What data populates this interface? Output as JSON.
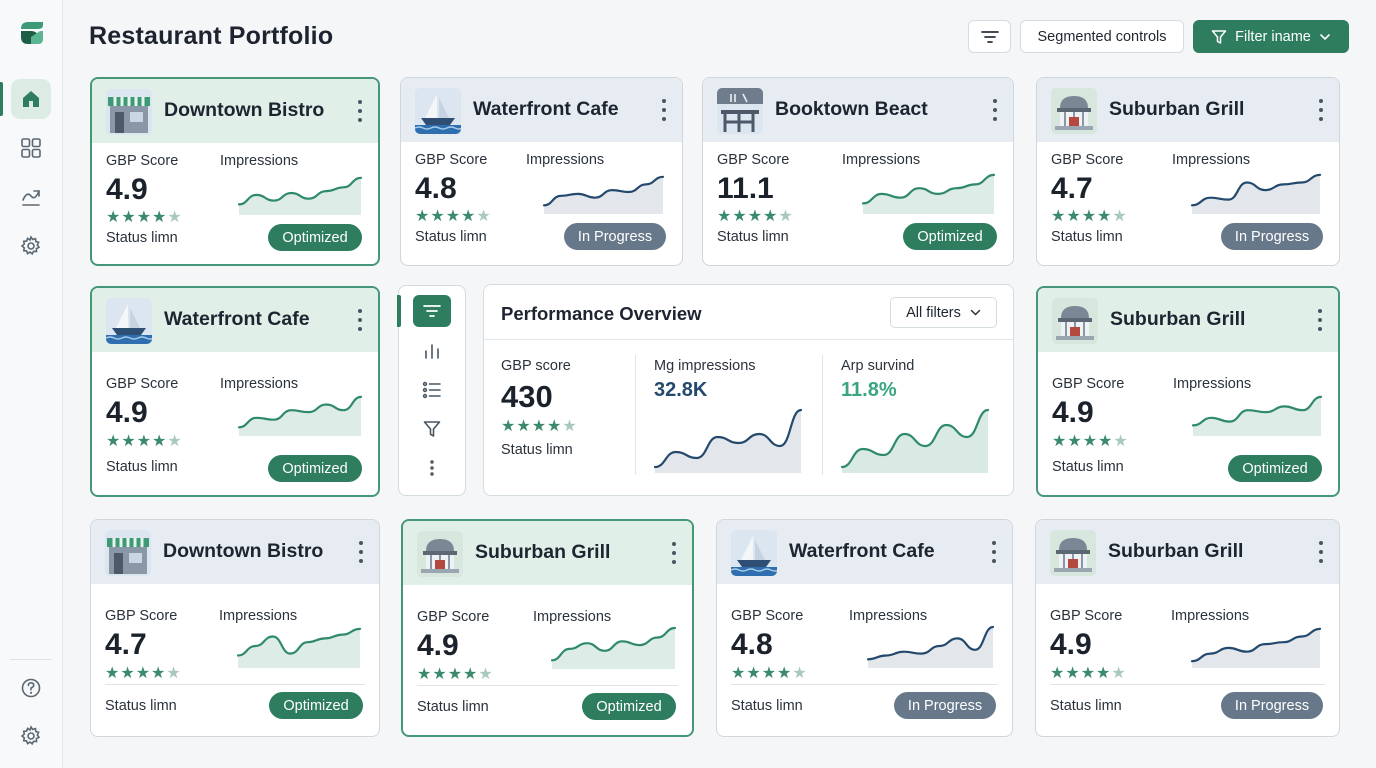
{
  "app": {
    "title": "Restaurant Portfolio"
  },
  "sidebar": {
    "items": [
      {
        "icon": "home-icon",
        "active": true
      },
      {
        "icon": "grid-icon",
        "active": false
      },
      {
        "icon": "trend-icon",
        "active": false
      },
      {
        "icon": "gear-icon",
        "active": false
      }
    ],
    "bottom_items": [
      {
        "icon": "help-icon"
      },
      {
        "icon": "gear-icon"
      }
    ]
  },
  "header": {
    "segmented_label": "Segmented controls",
    "filter_label": "Filter iname"
  },
  "colors": {
    "accent": "#2e7d5f",
    "in_progress": "#67788a",
    "star": "#3b8a6b",
    "spark_green": "#2f8a68",
    "spark_blue": "#24496d"
  },
  "cards": [
    {
      "name": "Downtown Bistro",
      "thumb": "storefront",
      "score_label": "GBP Score",
      "score": "4.9",
      "impressions_label": "Impressions",
      "rating": 4.5,
      "status_label": "Status limn",
      "status": "Optimized",
      "highlighted": true,
      "spark": "green",
      "trend": [
        0.2,
        0.45,
        0.3,
        0.5,
        0.35,
        0.55,
        0.65,
        0.9
      ]
    },
    {
      "name": "Waterfront Cafe",
      "thumb": "sailboat",
      "score_label": "GBP Score",
      "score": "4.8",
      "impressions_label": "Impressions",
      "rating": 4.5,
      "status_label": "Status limn",
      "status": "In Progress",
      "highlighted": false,
      "spark": "blue",
      "trend": [
        0.15,
        0.4,
        0.45,
        0.35,
        0.55,
        0.5,
        0.7,
        0.9
      ]
    },
    {
      "name": "Booktown Beact",
      "thumb": "building",
      "score_label": "GBP Score",
      "score": "11.1",
      "impressions_label": "Impressions",
      "rating": 4.5,
      "status_label": "Status limn",
      "status": "Optimized",
      "highlighted": false,
      "spark": "green",
      "trend": [
        0.2,
        0.45,
        0.35,
        0.6,
        0.45,
        0.6,
        0.7,
        0.95
      ]
    },
    {
      "name": "Suburban Grill",
      "thumb": "pavilion",
      "score_label": "GBP Score",
      "score": "4.7",
      "impressions_label": "Impressions",
      "rating": 4.5,
      "status_label": "Status limn",
      "status": "In Progress",
      "highlighted": false,
      "spark": "blue",
      "trend": [
        0.15,
        0.35,
        0.3,
        0.75,
        0.55,
        0.7,
        0.75,
        0.95
      ]
    },
    {
      "name": "Waterfront Cafe",
      "thumb": "sailboat",
      "score_label": "GBP Score",
      "score": "4.9",
      "impressions_label": "Impressions",
      "rating": 4.5,
      "status_label": "Status limn",
      "status": "Optimized",
      "highlighted": true,
      "spark": "green",
      "trend": [
        0.15,
        0.4,
        0.35,
        0.6,
        0.55,
        0.75,
        0.6,
        0.95
      ]
    },
    {
      "name": "Suburban Grill",
      "thumb": "pavilion",
      "score_label": "GBP Score",
      "score": "4.9",
      "impressions_label": "Impressions",
      "rating": 4.5,
      "status_label": "Status limn",
      "status": "Optimized",
      "highlighted": true,
      "spark": "green",
      "trend": [
        0.2,
        0.4,
        0.3,
        0.6,
        0.55,
        0.7,
        0.6,
        0.95
      ]
    },
    {
      "name": "Downtown Bistro",
      "thumb": "storefront",
      "score_label": "GBP Score",
      "score": "4.7",
      "impressions_label": "Impressions",
      "rating": 4.5,
      "status_label": "Status limn",
      "status": "Optimized",
      "highlighted": false,
      "spark": "green",
      "trend": [
        0.25,
        0.5,
        0.75,
        0.3,
        0.6,
        0.7,
        0.8,
        0.95
      ]
    },
    {
      "name": "Suburban Grill",
      "thumb": "pavilion",
      "score_label": "GBP Score",
      "score": "4.9",
      "impressions_label": "Impressions",
      "rating": 4.5,
      "status_label": "Status limn",
      "status": "Optimized",
      "highlighted": true,
      "spark": "green",
      "trend": [
        0.15,
        0.45,
        0.6,
        0.4,
        0.65,
        0.55,
        0.75,
        1.0
      ]
    },
    {
      "name": "Waterfront Cafe",
      "thumb": "sailboat",
      "score_label": "GBP Score",
      "score": "4.8",
      "impressions_label": "Impressions",
      "rating": 4.5,
      "status_label": "Status limn",
      "status": "In Progress",
      "highlighted": false,
      "spark": "blue",
      "trend": [
        0.15,
        0.25,
        0.35,
        0.3,
        0.5,
        0.7,
        0.4,
        1.0
      ]
    },
    {
      "name": "Suburban Grill",
      "thumb": "pavilion",
      "score_label": "GBP Score",
      "score": "4.9",
      "impressions_label": "Impressions",
      "rating": 4.5,
      "status_label": "Status limn",
      "status": "In Progress",
      "highlighted": false,
      "spark": "blue",
      "trend": [
        0.1,
        0.3,
        0.45,
        0.35,
        0.55,
        0.6,
        0.75,
        0.95
      ]
    }
  ],
  "mini_toolbar": {
    "items": [
      "filter-lines-icon",
      "bar-chart-icon",
      "list-icon",
      "funnel-icon",
      "more-vertical-icon"
    ]
  },
  "performance": {
    "title": "Performance Overview",
    "filter_label": "All filters",
    "gbp_label": "GBP score",
    "gbp_value": "430",
    "gbp_rating": 4.5,
    "status_label": "Status limn",
    "impressions_label": "Mg impressions",
    "impressions_value": "32.8K",
    "impressions_trend": [
      0.05,
      0.3,
      0.2,
      0.55,
      0.45,
      0.6,
      0.4,
      1.0
    ],
    "survival_label": "Arp survind",
    "survival_value": "11.8%",
    "survival_trend": [
      0.05,
      0.35,
      0.25,
      0.6,
      0.4,
      0.75,
      0.55,
      1.0
    ]
  }
}
